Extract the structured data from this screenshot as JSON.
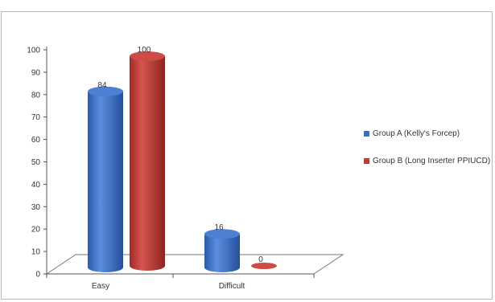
{
  "chart_data": {
    "type": "bar",
    "style": "3d-cylinder",
    "categories": [
      "Easy",
      "Difficult"
    ],
    "series": [
      {
        "name": "Group A (Kelly's Forcep)",
        "values": [
          84,
          16
        ],
        "color": "#3a6fc4"
      },
      {
        "name": "Group B (Long Inserter PPIUCD)",
        "values": [
          100,
          0
        ],
        "color": "#c23b36"
      }
    ],
    "ylim": [
      0,
      100
    ],
    "yticks": [
      0,
      10,
      20,
      30,
      40,
      50,
      60,
      70,
      80,
      90,
      100
    ],
    "data_labels": true,
    "legend_position": "right",
    "grid": false
  }
}
